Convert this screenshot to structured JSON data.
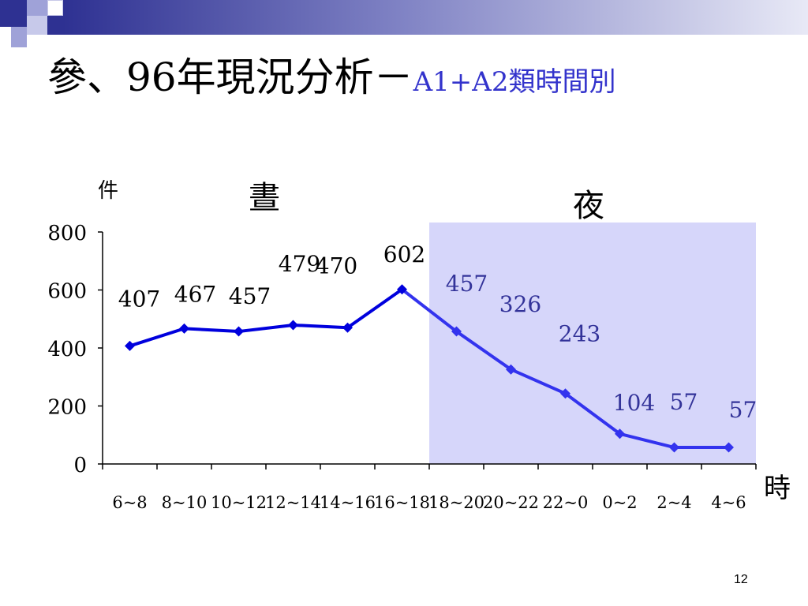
{
  "slide": {
    "title_main": "參、96年現況分析－",
    "title_sub": "A1+A2類時間別",
    "page_number": "12"
  },
  "colors": {
    "day_line": "#0000dd",
    "night_line": "#3333ee",
    "night_band": "#d6d6fa",
    "day_label": "#000000",
    "night_label": "#333399",
    "accent": "#2e3192"
  },
  "chart_data": {
    "type": "line",
    "ylabel": "件",
    "xlabel": "時",
    "ylim": [
      0,
      800
    ],
    "yticks": [
      "0",
      "200",
      "400",
      "600",
      "800"
    ],
    "categories": [
      "6~8",
      "8~10",
      "10~12",
      "12~14",
      "14~16",
      "16~18",
      "18~20",
      "20~22",
      "22~0",
      "0~2",
      "2~4",
      "4~6"
    ],
    "values": [
      407,
      467,
      457,
      479,
      470,
      602,
      457,
      326,
      243,
      104,
      57,
      57
    ],
    "data_labels": [
      "407",
      "467",
      "457",
      "479",
      "470",
      "602",
      "457",
      "326",
      "243",
      "104",
      "57",
      "57"
    ],
    "regions": [
      {
        "label": "晝",
        "from": "6~8",
        "to": "16~18"
      },
      {
        "label": "夜",
        "from": "18~20",
        "to": "4~6"
      }
    ],
    "grid": false,
    "legend": "none"
  }
}
